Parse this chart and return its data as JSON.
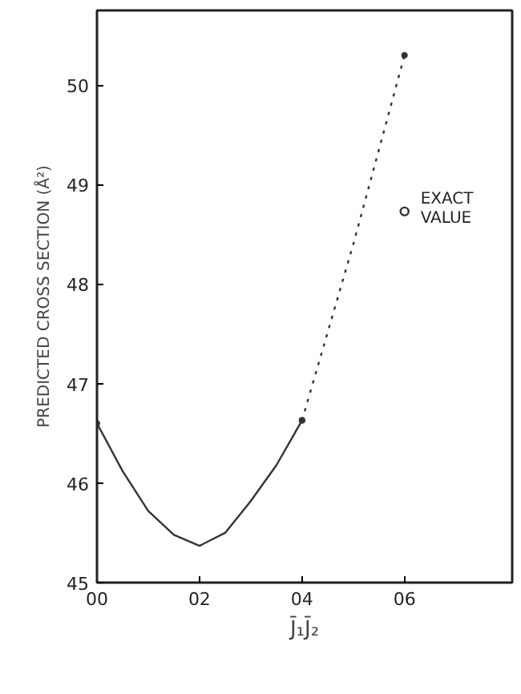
{
  "chart_data": {
    "type": "line",
    "xlabel": "J̄₁J̄₂",
    "ylabel": "PREDICTED CROSS SECTION (Å²)",
    "xlim": [
      0,
      8.1
    ],
    "ylim": [
      45,
      50.75
    ],
    "xticks": [
      {
        "value": 0,
        "label": "00"
      },
      {
        "value": 2,
        "label": "02"
      },
      {
        "value": 4,
        "label": "04"
      },
      {
        "value": 6,
        "label": "06"
      }
    ],
    "yticks": [
      45,
      46,
      47,
      48,
      49,
      50
    ],
    "series": [
      {
        "color": "#333333",
        "x": [
          0,
          0.5,
          1,
          1.5,
          2,
          2.5,
          3,
          3.5,
          4
        ],
        "values": [
          46.6,
          46.12,
          45.72,
          45.48,
          45.37,
          45.5,
          45.82,
          46.18,
          46.63
        ],
        "line_style": "solid"
      },
      {
        "color": "#333333",
        "x": [
          4,
          5,
          6
        ],
        "values": [
          46.63,
          48.4,
          50.3
        ],
        "line_style": "dotted"
      },
      {
        "type": "scatter",
        "color": "#333333",
        "x": [
          6
        ],
        "values": [
          48.73
        ],
        "marker": "circle"
      }
    ],
    "annotations": [
      {
        "text": "EXACT VALUE",
        "x": 6,
        "y": 48.73
      }
    ]
  }
}
